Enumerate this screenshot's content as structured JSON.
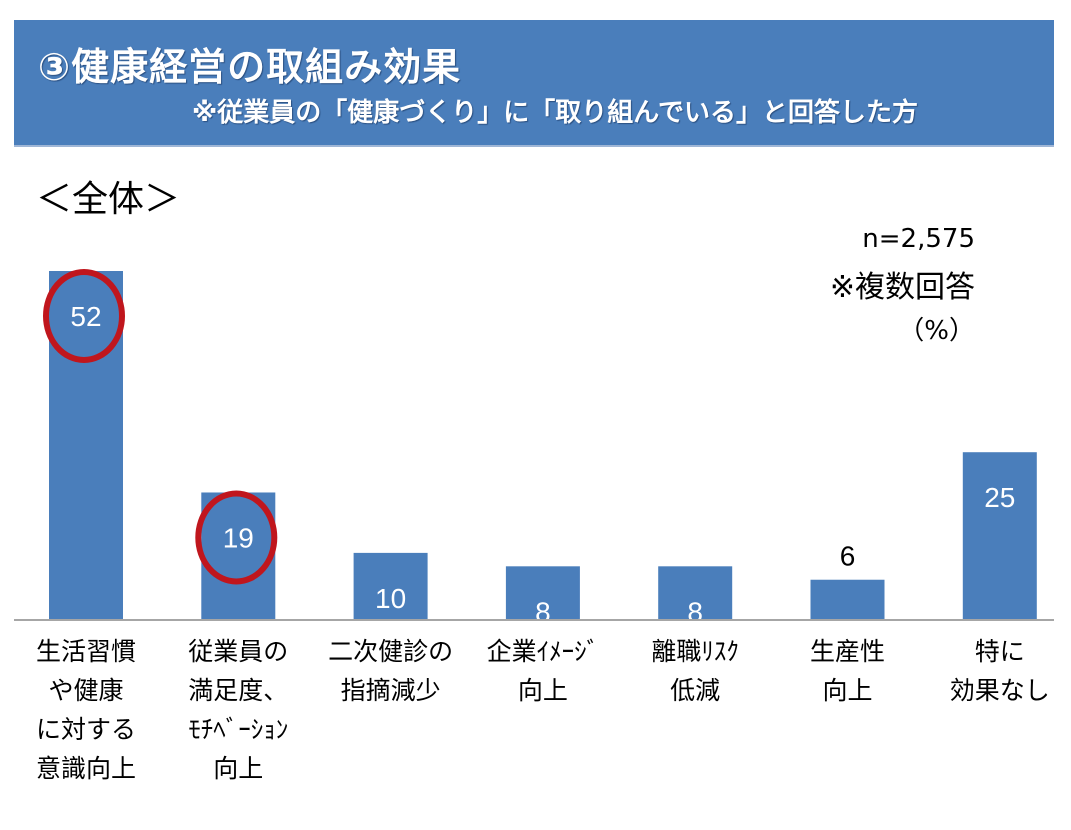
{
  "header": {
    "title": "③健康経営の取組み効果",
    "subtitle": "※従業員の「健康づくり」に「取り組んでいる」と回答した方"
  },
  "scope_label": "＜全体＞",
  "notes": {
    "n": "n=2,575",
    "multi": "※複数回答",
    "unit": "（%）"
  },
  "colors": {
    "bar": "#4a7ebb",
    "header": "#4a7ebb",
    "highlight": "#c0161d"
  },
  "chart_data": {
    "type": "bar",
    "title": "③健康経営の取組み効果",
    "ylabel": "%",
    "ylim": [
      0,
      60
    ],
    "grid": false,
    "categories": [
      "生活習慣\nや健康\nに対する\n意識向上",
      "従業員の\n満足度、\nﾓﾁﾍﾞｰｼｮﾝ\n向上",
      "二次健診の\n指摘減少",
      "企業ｲﾒｰｼﾞ\n向上",
      "離職ﾘｽｸ\n低減",
      "生産性\n向上",
      "特に\n効果なし"
    ],
    "values": [
      52,
      19,
      10,
      8,
      8,
      6,
      25
    ],
    "value_labels": [
      "52",
      "19",
      "10",
      "8",
      "8",
      "6",
      "25"
    ],
    "highlighted": [
      0,
      1
    ]
  }
}
